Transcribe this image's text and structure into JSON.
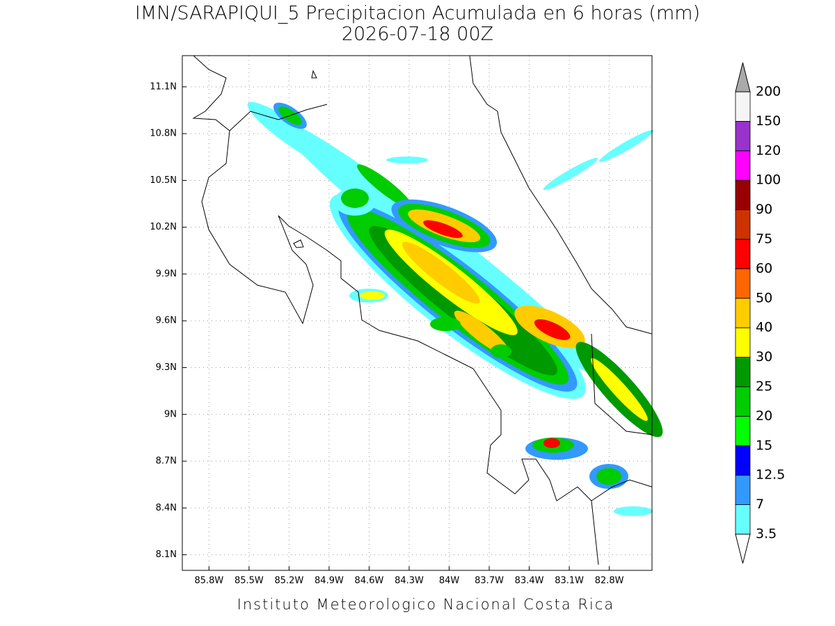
{
  "title": [
    "IMN/SARAPIQUI_5 Precipitacion Acumulada en 6 horas (mm)",
    "2026-07-18 00Z"
  ],
  "footer": "Instituto Meteorologico Nacional Costa Rica",
  "map": {
    "xlim": [
      -86.0,
      -82.48
    ],
    "ylim": [
      8.0,
      11.3
    ],
    "grid": true,
    "lon_ticks": [
      {
        "value": -85.8,
        "label": "85.8W"
      },
      {
        "value": -85.5,
        "label": "85.5W"
      },
      {
        "value": -85.2,
        "label": "85.2W"
      },
      {
        "value": -84.9,
        "label": "84.9W"
      },
      {
        "value": -84.6,
        "label": "84.6W"
      },
      {
        "value": -84.3,
        "label": "84.3W"
      },
      {
        "value": -84.0,
        "label": "84W"
      },
      {
        "value": -83.7,
        "label": "83.7W"
      },
      {
        "value": -83.4,
        "label": "83.4W"
      },
      {
        "value": -83.1,
        "label": "83.1W"
      },
      {
        "value": -82.8,
        "label": "82.8W"
      }
    ],
    "lat_ticks": [
      {
        "value": 8.1,
        "label": "8.1N"
      },
      {
        "value": 8.4,
        "label": "8.4N"
      },
      {
        "value": 8.7,
        "label": "8.7N"
      },
      {
        "value": 9.0,
        "label": "9N"
      },
      {
        "value": 9.3,
        "label": "9.3N"
      },
      {
        "value": 9.6,
        "label": "9.6N"
      },
      {
        "value": 9.9,
        "label": "9.9N"
      },
      {
        "value": 10.2,
        "label": "10.2N"
      },
      {
        "value": 10.5,
        "label": "10.5N"
      },
      {
        "value": 10.8,
        "label": "10.8N"
      },
      {
        "value": 11.1,
        "label": "11.1N"
      }
    ]
  },
  "colorbar": {
    "levels": [
      3.5,
      7,
      12.5,
      15,
      20,
      25,
      30,
      40,
      50,
      60,
      75,
      90,
      100,
      120,
      150,
      200
    ],
    "colors": [
      "#66ffff",
      "#3399ff",
      "#0000ff",
      "#00ff00",
      "#00cc00",
      "#009900",
      "#ffff00",
      "#ffcc00",
      "#ff6600",
      "#ff0000",
      "#cc3300",
      "#990000",
      "#ff00ff",
      "#9933cc",
      "#f5f5f5"
    ],
    "under_color": "#ffffff",
    "over_color": "#aaaaaa"
  }
}
